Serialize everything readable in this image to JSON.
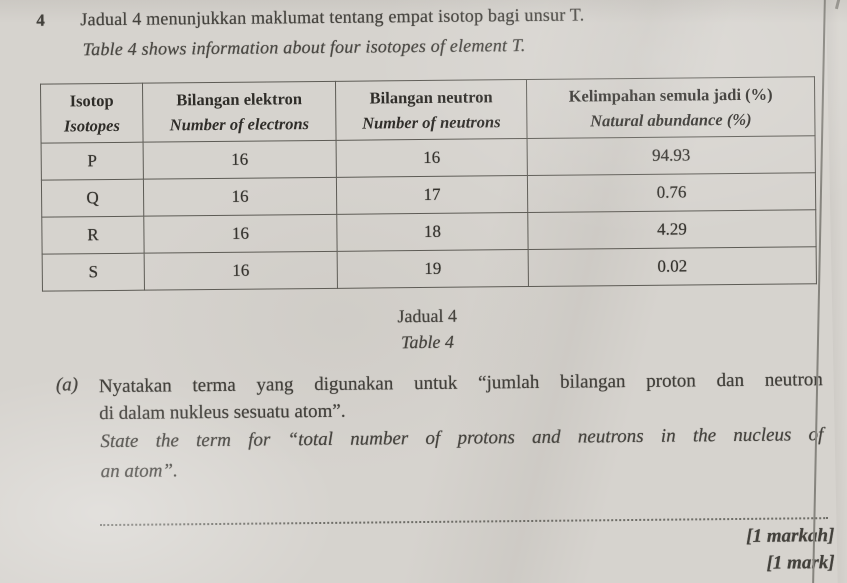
{
  "question": {
    "number": "4",
    "intro_ms": "Jadual 4 menunjukkan maklumat tentang empat isotop bagi unsur T.",
    "intro_en": "Table 4 shows information about four isotopes of element T."
  },
  "table": {
    "headers": {
      "isotope_ms": "Isotop",
      "isotope_en": "Isotopes",
      "electrons_ms": "Bilangan elektron",
      "electrons_en": "Number of electrons",
      "neutrons_ms": "Bilangan neutron",
      "neutrons_en": "Number of neutrons",
      "abundance_ms": "Kelimpahan semula jadi (%)",
      "abundance_en": "Natural abundance (%)"
    },
    "rows": [
      {
        "isotope": "P",
        "electrons": "16",
        "neutrons": "16",
        "abundance": "94.93"
      },
      {
        "isotope": "Q",
        "electrons": "16",
        "neutrons": "17",
        "abundance": "0.76"
      },
      {
        "isotope": "R",
        "electrons": "16",
        "neutrons": "18",
        "abundance": "4.29"
      },
      {
        "isotope": "S",
        "electrons": "16",
        "neutrons": "19",
        "abundance": "0.02"
      }
    ],
    "caption_ms": "Jadual 4",
    "caption_en": "Table 4"
  },
  "part_a": {
    "label": "(a)",
    "ms_lines": [
      "Nyatakan terma yang digunakan untuk “jumlah bilangan proton dan neutron",
      "di dalam nukleus sesuatu atom”."
    ],
    "en_lines": [
      "State the term for “total number of protons and neutrons in the nucleus of",
      "an atom”."
    ],
    "marks_ms": "[1 markah]",
    "marks_en": "[1 mark]"
  }
}
